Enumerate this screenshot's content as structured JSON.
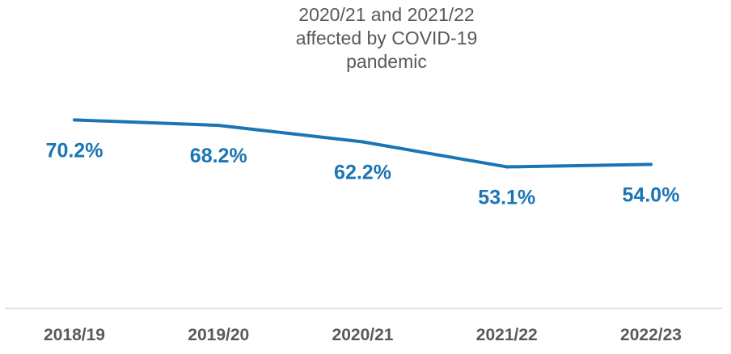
{
  "chart_data": {
    "type": "line",
    "categories": [
      "2018/19",
      "2019/20",
      "2020/21",
      "2021/22",
      "2022/23"
    ],
    "series": [
      {
        "values": [
          70.2,
          68.2,
          62.2,
          53.1,
          54.0
        ],
        "labels": [
          "70.2%",
          "68.2%",
          "62.2%",
          "53.1%",
          "54.0%"
        ]
      }
    ],
    "annotation": [
      "2020/21 and 2021/22",
      "affected by COVID-19",
      "pandemic"
    ],
    "title": "",
    "xlabel": "",
    "ylabel": "",
    "ylim": [
      0,
      100
    ],
    "grid": false,
    "legend": "none",
    "colors": {
      "line": "#1a75b4",
      "label": "#1a75b4",
      "tick": "#595959",
      "axis": "#d9d9d9",
      "annotation": "#595959"
    }
  }
}
